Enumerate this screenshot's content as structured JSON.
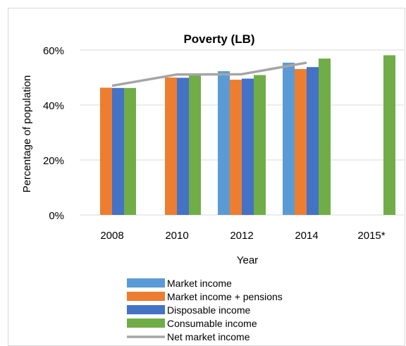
{
  "chart_data": {
    "type": "bar",
    "title": "Poverty (LB)",
    "xlabel": "Year",
    "ylabel": "Percentage of population",
    "categories": [
      "2008",
      "2010",
      "2012",
      "2014",
      "2015*"
    ],
    "ylim": [
      0,
      60
    ],
    "yticks": [
      0,
      20,
      40,
      60
    ],
    "ytick_labels": [
      "0%",
      "20%",
      "40%",
      "60%"
    ],
    "grid": true,
    "legend_position": "bottom",
    "series": [
      {
        "name": "Market income",
        "type": "bar",
        "color": "#5b9bd5",
        "values": [
          null,
          null,
          52.3,
          55.4,
          null
        ]
      },
      {
        "name": "Market income + pensions",
        "type": "bar",
        "color": "#ed7d31",
        "values": [
          46.3,
          50.0,
          49.2,
          53.1,
          null
        ]
      },
      {
        "name": "Disposable income",
        "type": "bar",
        "color": "#4472c4",
        "values": [
          46.2,
          49.9,
          49.6,
          53.8,
          null
        ]
      },
      {
        "name": "Consumable income",
        "type": "bar",
        "color": "#70ad47",
        "values": [
          46.2,
          51.0,
          50.9,
          56.9,
          58.1
        ]
      },
      {
        "name": "Net market income",
        "type": "line",
        "color": "#a5a5a5",
        "values": [
          47.0,
          51.1,
          51.2,
          55.4,
          null
        ]
      }
    ]
  }
}
